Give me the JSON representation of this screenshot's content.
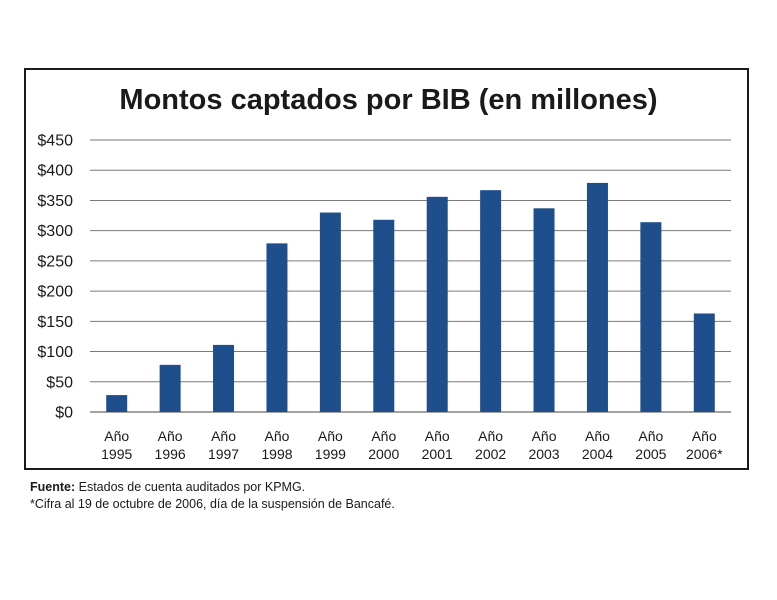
{
  "chart_data": {
    "type": "bar",
    "title": "Montos captados por BIB (en millones)",
    "categories": [
      [
        "Año",
        "1995"
      ],
      [
        "Año",
        "1996"
      ],
      [
        "Año",
        "1997"
      ],
      [
        "Año",
        "1998"
      ],
      [
        "Año",
        "1999"
      ],
      [
        "Año",
        "2000"
      ],
      [
        "Año",
        "2001"
      ],
      [
        "Año",
        "2002"
      ],
      [
        "Año",
        "2003"
      ],
      [
        "Año",
        "2004"
      ],
      [
        "Año",
        "2005"
      ],
      [
        "Año",
        "2006*"
      ]
    ],
    "values": [
      28,
      78,
      111,
      279,
      330,
      318,
      356,
      367,
      337,
      379,
      314,
      163
    ],
    "ylim": [
      0,
      450
    ],
    "yticks": [
      0,
      50,
      100,
      150,
      200,
      250,
      300,
      350,
      400,
      450
    ],
    "ytick_labels": [
      "$0",
      "$50",
      "$100",
      "$150",
      "$200",
      "$250",
      "$300",
      "$350",
      "$400",
      "$450"
    ],
    "xlabel": "",
    "ylabel": "",
    "grid": true,
    "legend": "none",
    "bar_color": "#1f4e8c"
  },
  "notes": {
    "source_label": "Fuente:",
    "source_text": " Estados de cuenta auditados por KPMG.",
    "footnote": "*Cifra al 19 de octubre de 2006, día de la suspensión de Bancafé."
  }
}
